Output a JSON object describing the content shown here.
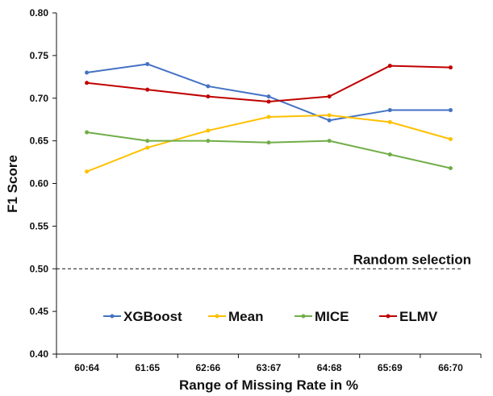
{
  "chart_data": {
    "type": "line",
    "xlabel": "Range of Missing Rate in %",
    "ylabel": "F1 Score",
    "categories": [
      "60:64",
      "61:65",
      "62:66",
      "63:67",
      "64:68",
      "65:69",
      "66:70"
    ],
    "ylim": [
      0.4,
      0.8
    ],
    "yticks": [
      "0.40",
      "0.45",
      "0.50",
      "0.55",
      "0.60",
      "0.65",
      "0.70",
      "0.75",
      "0.80"
    ],
    "grid": false,
    "legend_position": "bottom-inside",
    "series": [
      {
        "name": "XGBoost",
        "color": "#4472C4",
        "values": [
          0.73,
          0.74,
          0.714,
          0.702,
          0.674,
          0.686,
          0.686
        ]
      },
      {
        "name": "Mean",
        "color": "#FFC000",
        "values": [
          0.614,
          0.642,
          0.662,
          0.678,
          0.68,
          0.672,
          0.652
        ]
      },
      {
        "name": "MICE",
        "color": "#70AD47",
        "values": [
          0.66,
          0.65,
          0.65,
          0.648,
          0.65,
          0.634,
          0.618
        ]
      },
      {
        "name": "ELMV",
        "color": "#C00000",
        "values": [
          0.718,
          0.71,
          0.702,
          0.696,
          0.702,
          0.738,
          0.736
        ]
      }
    ],
    "reference_line": {
      "label": "Random selection",
      "value": 0.5,
      "style": "dashed"
    }
  }
}
